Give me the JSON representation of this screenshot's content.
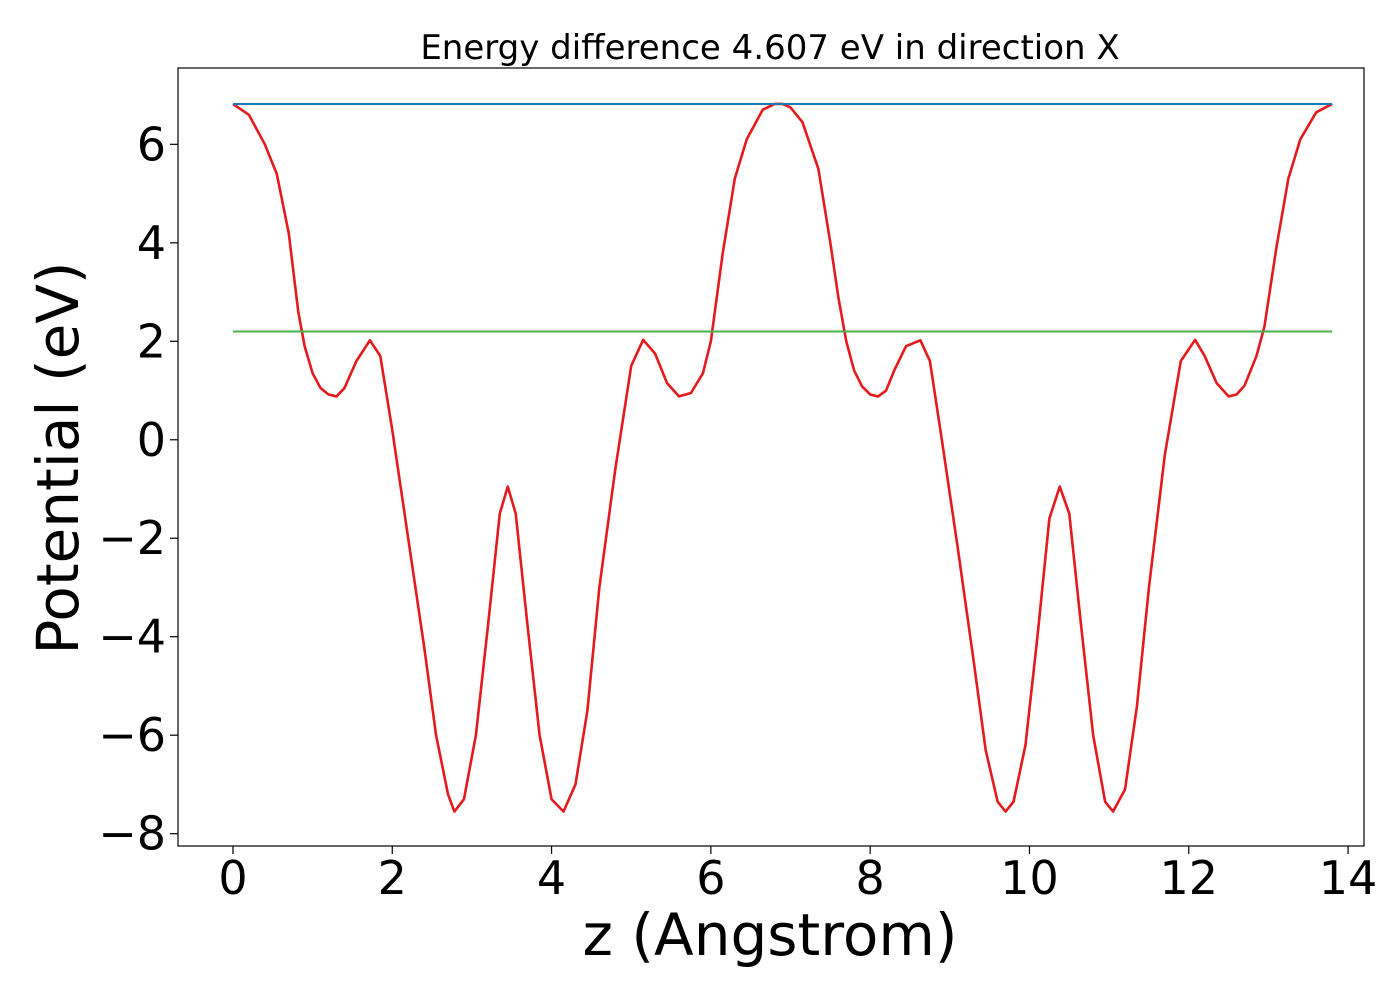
{
  "chart_data": {
    "type": "line",
    "title": "Energy difference 4.607 eV in direction X",
    "xlabel": "z (Angstrom)",
    "ylabel": "Potential (eV)",
    "xlim": [
      -0.69,
      14.2
    ],
    "ylim": [
      -8.25,
      7.55
    ],
    "xticks": [
      0,
      2,
      4,
      6,
      8,
      10,
      12,
      14
    ],
    "xtick_labels": [
      "0",
      "2",
      "4",
      "6",
      "8",
      "10",
      "12",
      "14"
    ],
    "yticks": [
      -8,
      -6,
      -4,
      -2,
      0,
      2,
      4,
      6
    ],
    "ytick_labels": [
      "−8",
      "−6",
      "−4",
      "−2",
      "0",
      "2",
      "4",
      "6"
    ],
    "grid": false,
    "series": [
      {
        "color": "#e41a1c",
        "x": [
          0,
          0.2,
          0.4,
          0.55,
          0.7,
          0.82,
          0.9,
          1.0,
          1.1,
          1.2,
          1.3,
          1.4,
          1.55,
          1.72,
          1.85,
          2.0,
          2.2,
          2.4,
          2.55,
          2.7,
          2.78,
          2.9,
          3.05,
          3.2,
          3.35,
          3.45,
          3.55,
          3.7,
          3.85,
          4.0,
          4.15,
          4.3,
          4.45,
          4.6,
          4.8,
          5.0,
          5.15,
          5.3,
          5.45,
          5.6,
          5.75,
          5.9,
          6.0,
          6.15,
          6.3,
          6.45,
          6.65,
          6.8,
          6.9,
          7.0,
          7.15,
          7.35,
          7.5,
          7.6,
          7.7,
          7.8,
          7.9,
          8.0,
          8.1,
          8.2,
          8.3,
          8.45,
          8.63,
          8.75,
          8.9,
          9.1,
          9.3,
          9.45,
          9.6,
          9.7,
          9.8,
          9.95,
          10.1,
          10.25,
          10.38,
          10.5,
          10.65,
          10.8,
          10.95,
          11.05,
          11.2,
          11.35,
          11.5,
          11.7,
          11.9,
          12.08,
          12.2,
          12.35,
          12.5,
          12.6,
          12.7,
          12.85,
          12.95,
          13.1,
          13.25,
          13.4,
          13.6,
          13.8
        ],
        "values": [
          6.82,
          6.6,
          6.0,
          5.4,
          4.2,
          2.6,
          1.9,
          1.35,
          1.05,
          0.92,
          0.88,
          1.05,
          1.6,
          2.02,
          1.7,
          0.2,
          -2.0,
          -4.2,
          -6.0,
          -7.2,
          -7.55,
          -7.3,
          -6.0,
          -3.8,
          -1.5,
          -0.95,
          -1.5,
          -3.8,
          -6.0,
          -7.3,
          -7.55,
          -7.0,
          -5.5,
          -3.0,
          -0.6,
          1.5,
          2.03,
          1.75,
          1.15,
          0.88,
          0.95,
          1.35,
          2.0,
          3.8,
          5.3,
          6.1,
          6.7,
          6.82,
          6.82,
          6.75,
          6.45,
          5.5,
          4.0,
          2.9,
          2.0,
          1.4,
          1.08,
          0.92,
          0.88,
          1.0,
          1.4,
          1.9,
          2.02,
          1.6,
          0.0,
          -2.2,
          -4.5,
          -6.3,
          -7.35,
          -7.55,
          -7.35,
          -6.2,
          -4.0,
          -1.6,
          -0.95,
          -1.5,
          -3.8,
          -6.0,
          -7.35,
          -7.55,
          -7.1,
          -5.4,
          -3.0,
          -0.3,
          1.6,
          2.03,
          1.7,
          1.15,
          0.88,
          0.92,
          1.1,
          1.7,
          2.3,
          3.9,
          5.3,
          6.1,
          6.65,
          6.82
        ]
      },
      {
        "color": "#1f77b4",
        "x": [
          0,
          13.8
        ],
        "values": [
          6.82,
          6.82
        ]
      },
      {
        "color": "#4daf4a",
        "x": [
          0,
          13.8
        ],
        "values": [
          2.2,
          2.2
        ]
      }
    ]
  }
}
